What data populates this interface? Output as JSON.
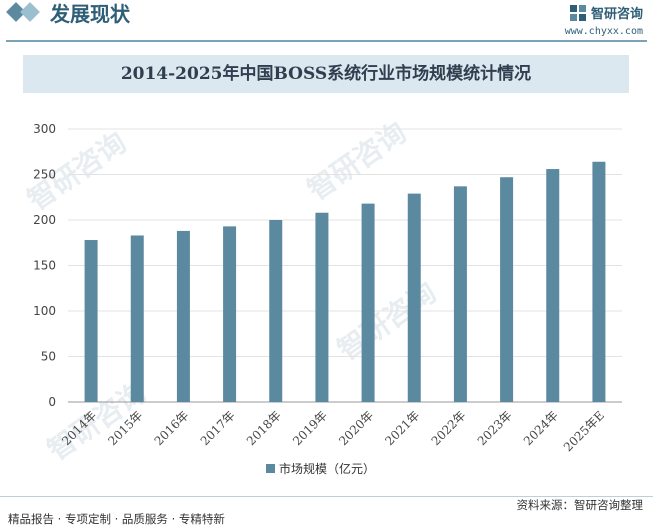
{
  "header": {
    "section_title": "发展现状",
    "logo_text": "智研咨询",
    "website": "www.chyxx.com"
  },
  "watermark": "智研咨询",
  "chart_data": {
    "type": "bar",
    "title": "2014-2025年中国BOSS系统行业市场规模统计情况",
    "categories": [
      "2014年",
      "2015年",
      "2016年",
      "2017年",
      "2018年",
      "2019年",
      "2020年",
      "2021年",
      "2022年",
      "2023年",
      "2024年",
      "2025年E"
    ],
    "series": [
      {
        "name": "市场规模（亿元）",
        "values": [
          178,
          183,
          188,
          193,
          200,
          208,
          218,
          229,
          237,
          247,
          256,
          264
        ]
      }
    ],
    "ylim": [
      0,
      300
    ],
    "yticks": [
      0,
      50,
      100,
      150,
      200,
      250,
      300
    ],
    "xlabel": "",
    "ylabel": "",
    "grid": true,
    "legend": "bottom",
    "color": "#5b8aa0"
  },
  "footer": {
    "source": "资料来源：智研咨询整理",
    "services": "精品报告 · 专项定制 · 品质服务 · 专精特新"
  }
}
